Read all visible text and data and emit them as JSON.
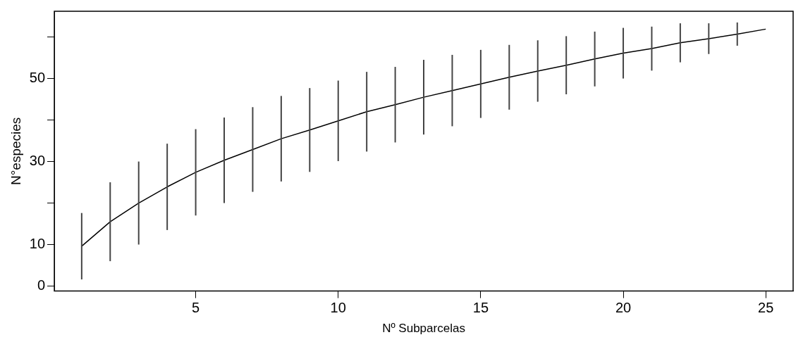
{
  "chart_data": {
    "type": "line",
    "xlabel": "Nº Subparcelas",
    "ylabel": "N°especies",
    "x": [
      1,
      2,
      3,
      4,
      5,
      6,
      7,
      8,
      9,
      10,
      11,
      12,
      13,
      14,
      15,
      16,
      17,
      18,
      19,
      20,
      21,
      22,
      23,
      24,
      25
    ],
    "series": [
      {
        "color": "#000000",
        "values": [
          9.6,
          15.5,
          20.0,
          23.9,
          27.4,
          30.3,
          32.9,
          35.5,
          37.6,
          39.8,
          42.0,
          43.7,
          45.5,
          47.1,
          48.7,
          50.3,
          51.8,
          53.2,
          54.7,
          56.1,
          57.2,
          58.6,
          59.6,
          60.7,
          61.9
        ],
        "errors": [
          8.0,
          9.5,
          10.0,
          10.4,
          10.4,
          10.3,
          10.2,
          10.3,
          10.1,
          9.7,
          9.6,
          9.1,
          9.0,
          8.6,
          8.2,
          7.8,
          7.4,
          7.0,
          6.6,
          6.1,
          5.3,
          4.7,
          3.7,
          2.8,
          null
        ]
      }
    ],
    "xlim": [
      0.04,
      25.96
    ],
    "xticks": [
      5,
      10,
      15,
      20,
      25
    ],
    "ylim": [
      -1.2,
      66.2
    ],
    "yticks": [
      0,
      10,
      {
        "value": 20,
        "label": null
      },
      30,
      {
        "value": 40,
        "label": null
      },
      50,
      {
        "value": 60,
        "label": null
      }
    ],
    "grid": false,
    "legend": false,
    "marker": "none",
    "line_style": "solid"
  }
}
